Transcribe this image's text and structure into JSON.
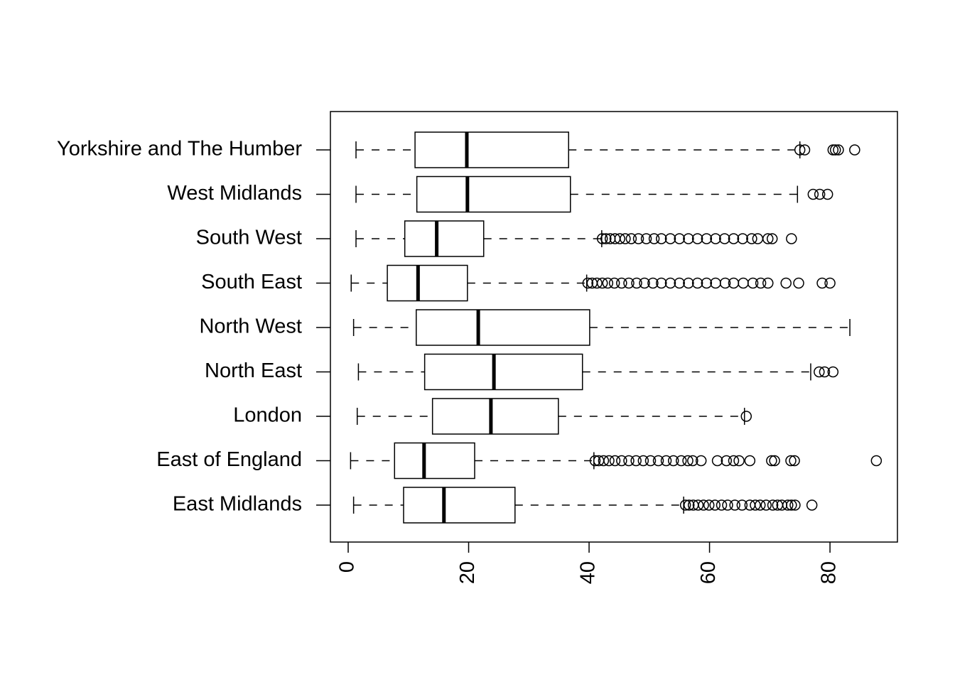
{
  "chart_data": {
    "type": "boxplot",
    "categories": [
      "East Midlands",
      "East of England",
      "London",
      "North East",
      "North West",
      "South East",
      "South West",
      "West Midlands",
      "Yorkshire and The Humber"
    ],
    "boxes": [
      {
        "min": 0.9,
        "q1": 9.2,
        "median": 15.9,
        "q3": 27.7,
        "max": 55.7,
        "outliers": [
          56.0,
          56.6,
          57.3,
          58.1,
          59.0,
          59.9,
          60.9,
          62.0,
          63.0,
          64.2,
          65.4,
          66.7,
          67.6,
          68.4,
          69.4,
          70.5,
          71.3,
          72.0,
          73.0,
          73.6,
          74.2,
          77.0
        ]
      },
      {
        "min": 0.4,
        "q1": 7.7,
        "median": 12.6,
        "q3": 21.0,
        "max": 40.8,
        "outliers": [
          41.0,
          41.6,
          42.4,
          43.3,
          44.3,
          45.4,
          46.6,
          47.8,
          49.0,
          50.2,
          51.5,
          52.8,
          54.0,
          55.3,
          56.4,
          57.2,
          58.6,
          61.3,
          62.8,
          64.0,
          64.9,
          66.7,
          70.3,
          70.8,
          73.5,
          74.1,
          87.7
        ]
      },
      {
        "min": 1.5,
        "q1": 14.0,
        "median": 23.7,
        "q3": 34.9,
        "max": 65.8,
        "outliers": [
          66.1
        ]
      },
      {
        "min": 1.7,
        "q1": 12.7,
        "median": 24.2,
        "q3": 38.9,
        "max": 76.8,
        "outliers": [
          78.2,
          79.1,
          80.5
        ]
      },
      {
        "min": 0.9,
        "q1": 11.3,
        "median": 21.6,
        "q3": 40.1,
        "max": 83.3,
        "outliers": []
      },
      {
        "min": 0.5,
        "q1": 6.5,
        "median": 11.6,
        "q3": 19.8,
        "max": 39.6,
        "outliers": [
          39.8,
          40.5,
          41.3,
          42.2,
          43.1,
          44.2,
          45.4,
          46.6,
          47.9,
          49.2,
          50.6,
          52.0,
          53.5,
          55.0,
          56.5,
          58.0,
          59.5,
          61.0,
          62.6,
          64.0,
          65.6,
          67.2,
          68.5,
          69.7,
          72.7,
          74.8,
          78.7,
          80.0
        ]
      },
      {
        "min": 1.3,
        "q1": 9.4,
        "median": 14.7,
        "q3": 22.5,
        "max": 42.1,
        "outliers": [
          42.2,
          42.8,
          43.5,
          44.3,
          45.1,
          46.0,
          47.0,
          48.2,
          49.5,
          50.8,
          52.0,
          53.5,
          55.0,
          56.5,
          58.0,
          59.5,
          61.0,
          62.5,
          64.0,
          65.5,
          67.0,
          68.0,
          69.7,
          70.4,
          73.6
        ]
      },
      {
        "min": 1.3,
        "q1": 11.4,
        "median": 19.8,
        "q3": 36.9,
        "max": 74.6,
        "outliers": [
          77.2,
          78.3,
          79.6
        ]
      },
      {
        "min": 1.3,
        "q1": 11.1,
        "median": 19.7,
        "q3": 36.6,
        "max": 75.0,
        "outliers": [
          75.0,
          75.8,
          80.5,
          80.9,
          81.4,
          84.1
        ]
      }
    ],
    "xlim": [
      -2.95,
      91.2
    ],
    "xticks": [
      0,
      20,
      40,
      60,
      80
    ]
  }
}
